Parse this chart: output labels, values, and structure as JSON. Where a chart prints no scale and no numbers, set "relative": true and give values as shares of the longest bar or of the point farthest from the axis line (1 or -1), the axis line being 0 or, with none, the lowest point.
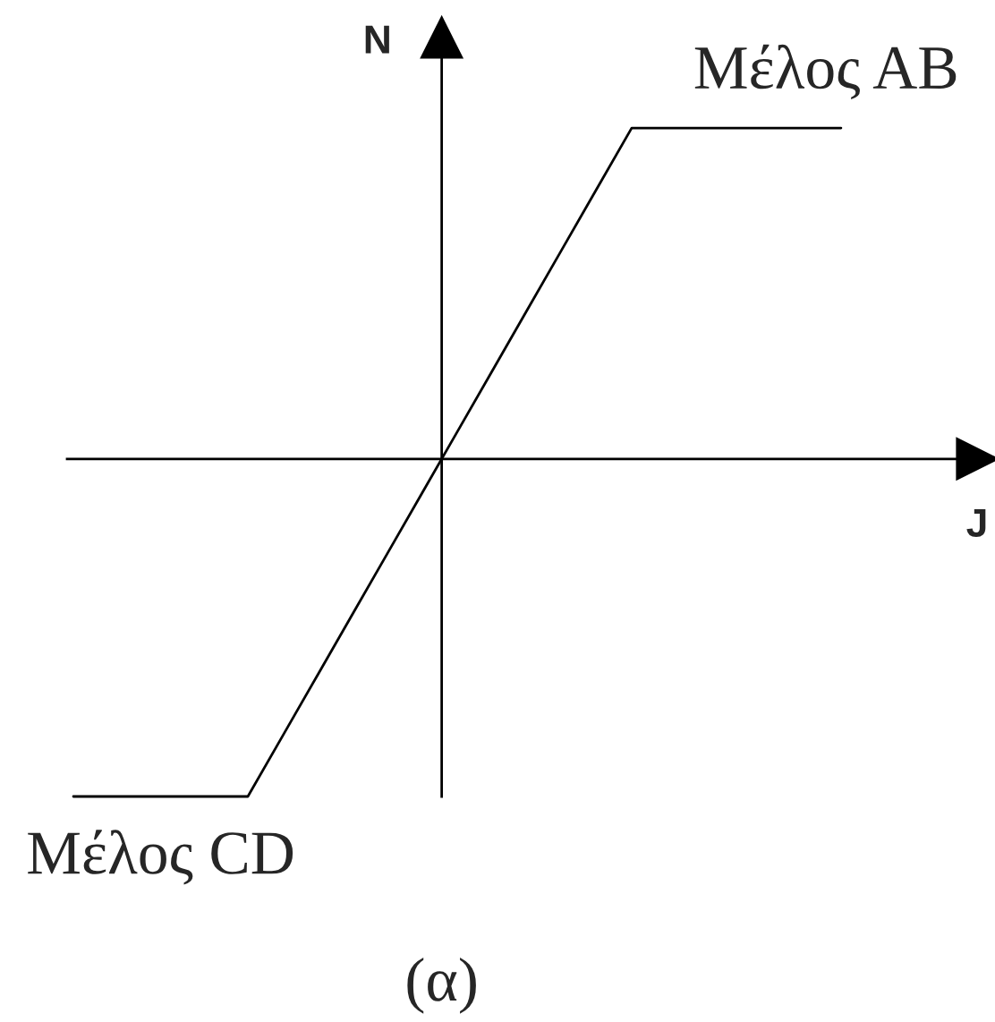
{
  "chart_data": {
    "type": "line",
    "relative": true,
    "xlabel": "J",
    "ylabel": "N",
    "categories": [
      null,
      null,
      null,
      null,
      null,
      null,
      null,
      null,
      null,
      null,
      null,
      null,
      null,
      null,
      null,
      null,
      null,
      null,
      null,
      null,
      null,
      null,
      null
    ],
    "values": [
      -1,
      -1,
      -1,
      -1,
      -1,
      -1,
      -0.82,
      -0.64,
      -0.46,
      -0.28,
      -0.1,
      0.08,
      0.26,
      0.44,
      0.62,
      0.8,
      0.98,
      0.98,
      0.98,
      0.98,
      0.98,
      0.98,
      0.98
    ],
    "color": "#000000",
    "annotations": [
      {
        "text": "Μέλος AB",
        "y": 0.98
      },
      {
        "text": "Μέλος CD",
        "y": -1
      },
      "(α)"
    ]
  }
}
